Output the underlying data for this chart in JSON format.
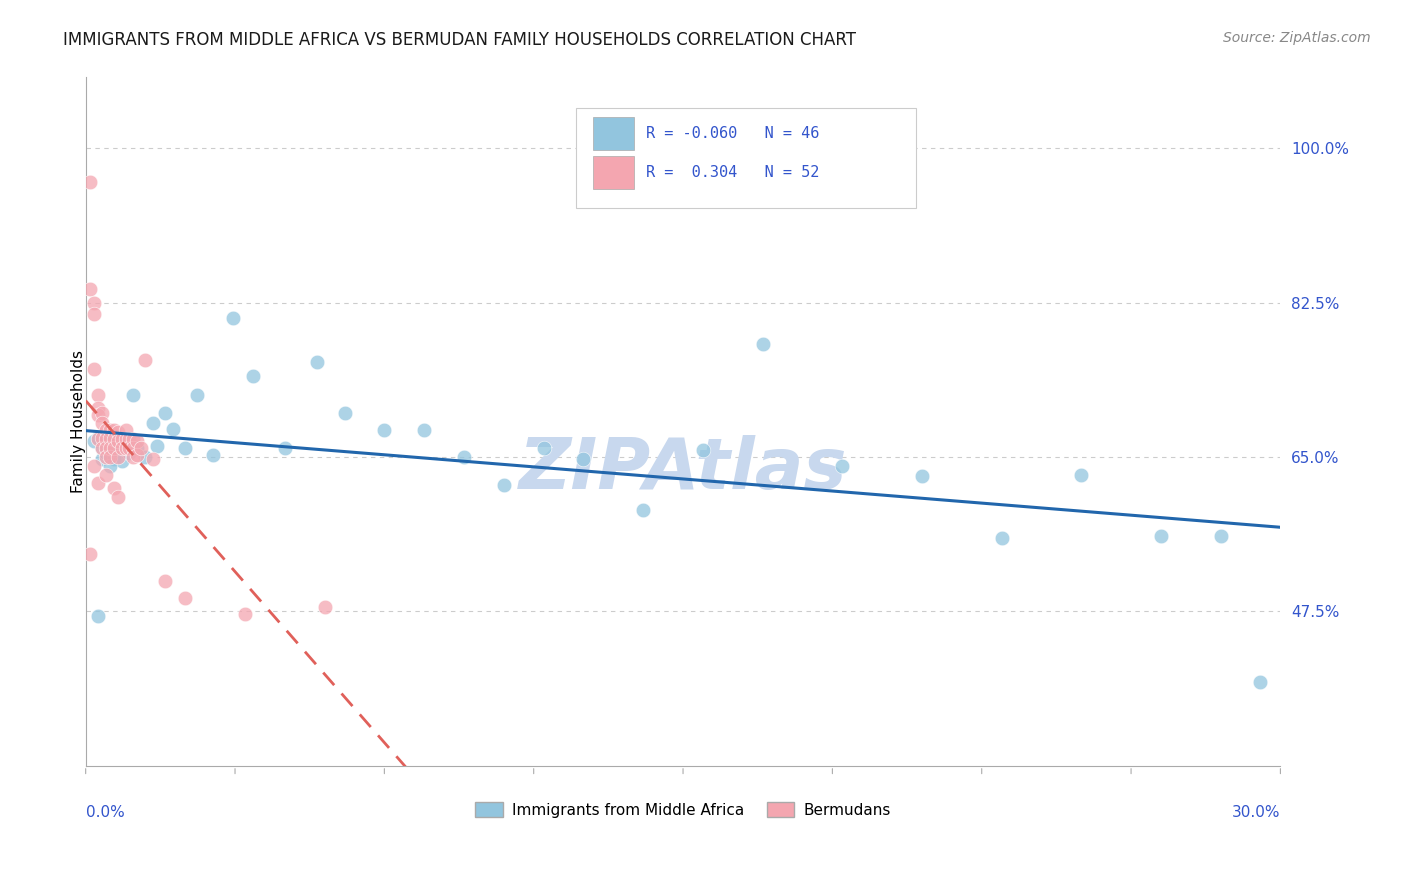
{
  "title": "IMMIGRANTS FROM MIDDLE AFRICA VS BERMUDAN FAMILY HOUSEHOLDS CORRELATION CHART",
  "source": "Source: ZipAtlas.com",
  "ylabel": "Family Households",
  "ytick_values": [
    1.0,
    0.825,
    0.65,
    0.475
  ],
  "ytick_labels": [
    "100.0%",
    "82.5%",
    "65.0%",
    "47.5%"
  ],
  "xlim": [
    0.0,
    0.3
  ],
  "ylim": [
    0.3,
    1.08
  ],
  "blue_color": "#92c5de",
  "pink_color": "#f4a6b0",
  "blue_line_color": "#2166ac",
  "pink_line_color": "#e0605a",
  "pink_line_dash": [
    6,
    4
  ],
  "grid_color": "#cccccc",
  "title_color": "#1a1a1a",
  "label_color": "#3355cc",
  "watermark_color": "#c8d8ee",
  "legend_r_blue": "-0.060",
  "legend_n_blue": "46",
  "legend_r_pink": " 0.304",
  "legend_n_pink": "52",
  "blue_scatter_x": [
    0.002,
    0.003,
    0.004,
    0.004,
    0.005,
    0.005,
    0.006,
    0.007,
    0.007,
    0.008,
    0.009,
    0.01,
    0.011,
    0.012,
    0.013,
    0.015,
    0.017,
    0.018,
    0.02,
    0.022,
    0.025,
    0.028,
    0.032,
    0.037,
    0.042,
    0.05,
    0.058,
    0.065,
    0.075,
    0.085,
    0.095,
    0.105,
    0.115,
    0.125,
    0.14,
    0.155,
    0.17,
    0.19,
    0.21,
    0.23,
    0.25,
    0.27,
    0.285,
    0.295,
    0.003,
    0.006
  ],
  "blue_scatter_y": [
    0.668,
    0.672,
    0.66,
    0.648,
    0.655,
    0.665,
    0.65,
    0.648,
    0.658,
    0.665,
    0.645,
    0.66,
    0.655,
    0.72,
    0.66,
    0.65,
    0.688,
    0.662,
    0.7,
    0.682,
    0.66,
    0.72,
    0.652,
    0.808,
    0.742,
    0.66,
    0.758,
    0.7,
    0.68,
    0.68,
    0.65,
    0.618,
    0.66,
    0.648,
    0.59,
    0.658,
    0.778,
    0.64,
    0.628,
    0.558,
    0.63,
    0.56,
    0.56,
    0.395,
    0.47,
    0.64
  ],
  "pink_scatter_x": [
    0.001,
    0.001,
    0.002,
    0.002,
    0.002,
    0.003,
    0.003,
    0.003,
    0.003,
    0.004,
    0.004,
    0.004,
    0.004,
    0.005,
    0.005,
    0.005,
    0.005,
    0.006,
    0.006,
    0.006,
    0.006,
    0.007,
    0.007,
    0.007,
    0.008,
    0.008,
    0.008,
    0.009,
    0.009,
    0.01,
    0.01,
    0.01,
    0.011,
    0.011,
    0.012,
    0.012,
    0.012,
    0.013,
    0.013,
    0.014,
    0.015,
    0.017,
    0.02,
    0.025,
    0.04,
    0.06,
    0.001,
    0.002,
    0.003,
    0.005,
    0.007,
    0.008
  ],
  "pink_scatter_y": [
    0.962,
    0.84,
    0.825,
    0.812,
    0.75,
    0.72,
    0.705,
    0.698,
    0.67,
    0.7,
    0.688,
    0.672,
    0.66,
    0.68,
    0.67,
    0.66,
    0.65,
    0.68,
    0.672,
    0.66,
    0.65,
    0.68,
    0.67,
    0.66,
    0.678,
    0.668,
    0.65,
    0.67,
    0.66,
    0.68,
    0.67,
    0.66,
    0.67,
    0.66,
    0.67,
    0.66,
    0.65,
    0.668,
    0.652,
    0.66,
    0.76,
    0.648,
    0.51,
    0.49,
    0.472,
    0.48,
    0.54,
    0.64,
    0.62,
    0.63,
    0.615,
    0.605
  ]
}
